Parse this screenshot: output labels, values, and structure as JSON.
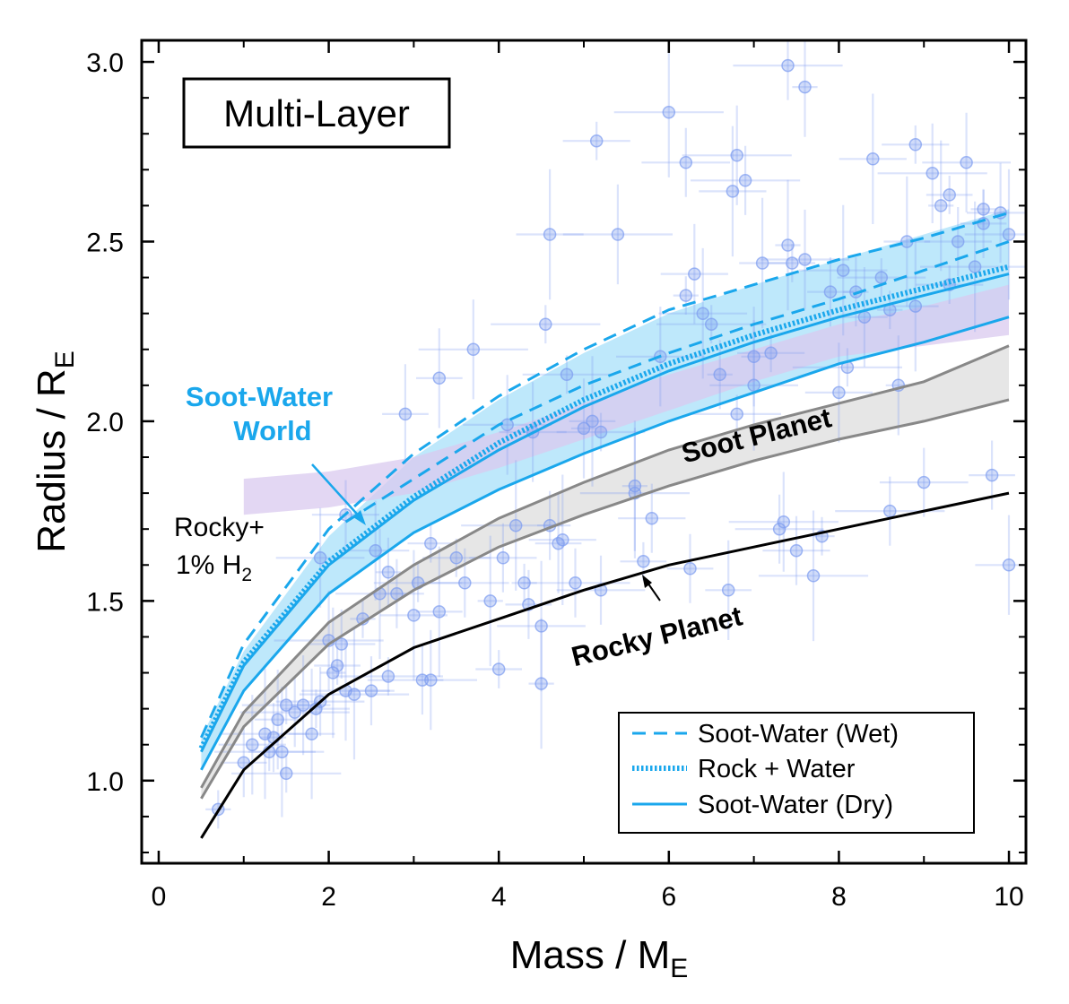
{
  "chart_data": {
    "type": "line",
    "title": "Multi-Layer",
    "xlabel": "Mass / M",
    "xlabel_sub": "E",
    "ylabel": "Radius / R",
    "ylabel_sub": "E",
    "xlim": [
      -0.2,
      10.2
    ],
    "ylim": [
      0.77,
      3.06
    ],
    "xticks": [
      0,
      2,
      4,
      6,
      8,
      10
    ],
    "xtick_labels": [
      "0",
      "2",
      "4",
      "6",
      "8",
      "10"
    ],
    "yticks": [
      1.0,
      1.5,
      2.0,
      2.5,
      3.0
    ],
    "ytick_labels": [
      "1.0",
      "1.5",
      "2.0",
      "2.5",
      "3.0"
    ],
    "colors": {
      "cyan": "#1aa7ec",
      "cyan_fill": "#b3e4fa",
      "gray_line": "#888888",
      "gray_fill": "#e2e2e2",
      "black": "#000000",
      "purple_fill": "#d9c9ef",
      "points": "#7c9bef"
    },
    "series": [
      {
        "name": "Soot-Water (Wet)",
        "style": "dashed",
        "color": "#1aa7ec",
        "x": [
          0.5,
          1,
          2,
          3,
          4,
          5,
          6,
          7,
          8,
          9,
          10
        ],
        "y": [
          1.12,
          1.38,
          1.7,
          1.91,
          2.07,
          2.2,
          2.31,
          2.38,
          2.45,
          2.51,
          2.58
        ]
      },
      {
        "name": "Soot-Water (Wet) lower",
        "style": "dashed",
        "color": "#1aa7ec",
        "x": [
          2.2,
          3,
          4,
          5,
          6,
          7,
          8,
          9,
          10
        ],
        "y": [
          1.72,
          1.84,
          1.99,
          2.1,
          2.19,
          2.27,
          2.34,
          2.42,
          2.5
        ]
      },
      {
        "name": "Rock + Water",
        "style": "dotted",
        "color": "#1aa7ec",
        "x": [
          0.5,
          1,
          2,
          3,
          4,
          5,
          6,
          7,
          8,
          9,
          10
        ],
        "y": [
          1.09,
          1.33,
          1.61,
          1.79,
          1.94,
          2.06,
          2.16,
          2.24,
          2.31,
          2.37,
          2.43
        ]
      },
      {
        "name": "Soot-Water (Dry)",
        "style": "solid",
        "color": "#1aa7ec",
        "x": [
          0.5,
          1,
          2,
          3,
          4,
          5,
          6,
          7,
          8,
          9,
          10
        ],
        "y": [
          1.08,
          1.32,
          1.6,
          1.78,
          1.92,
          2.04,
          2.14,
          2.22,
          2.29,
          2.35,
          2.41
        ]
      },
      {
        "name": "Soot-Water (Dry) lower",
        "style": "solid",
        "color": "#1aa7ec",
        "x": [
          0.5,
          1,
          2,
          3,
          4,
          5,
          6,
          7,
          8,
          9,
          10
        ],
        "y": [
          1.03,
          1.25,
          1.52,
          1.69,
          1.81,
          1.91,
          2.0,
          2.08,
          2.16,
          2.22,
          2.29
        ]
      },
      {
        "name": "Soot Planet upper",
        "style": "solid",
        "color": "#888888",
        "x": [
          0.5,
          1,
          2,
          3,
          4,
          5,
          6,
          7,
          8,
          9,
          10
        ],
        "y": [
          0.98,
          1.19,
          1.44,
          1.6,
          1.73,
          1.83,
          1.92,
          1.99,
          2.05,
          2.11,
          2.21
        ]
      },
      {
        "name": "Soot Planet lower",
        "style": "solid",
        "color": "#888888",
        "x": [
          0.5,
          1,
          2,
          3,
          4,
          5,
          6,
          7,
          8,
          9,
          10
        ],
        "y": [
          0.95,
          1.15,
          1.38,
          1.53,
          1.65,
          1.74,
          1.82,
          1.89,
          1.95,
          2.0,
          2.06
        ]
      },
      {
        "name": "Rocky Planet",
        "style": "solid",
        "color": "#000000",
        "x": [
          0.5,
          1,
          2,
          3,
          4,
          5,
          6,
          7,
          8,
          9,
          10
        ],
        "y": [
          0.84,
          1.03,
          1.24,
          1.37,
          1.45,
          1.53,
          1.6,
          1.65,
          1.7,
          1.75,
          1.8
        ]
      }
    ],
    "bands": [
      {
        "name": "Soot-Water band",
        "color": "#b3e4fa",
        "x": [
          0.5,
          1,
          2,
          3,
          4,
          5,
          6,
          7,
          8,
          9,
          10
        ],
        "upper": [
          1.12,
          1.36,
          1.68,
          1.9,
          2.06,
          2.19,
          2.3,
          2.38,
          2.45,
          2.52,
          2.59
        ],
        "lower": [
          1.03,
          1.25,
          1.52,
          1.69,
          1.81,
          1.91,
          2.0,
          2.08,
          2.16,
          2.22,
          2.29
        ]
      },
      {
        "name": "Soot Planet band",
        "color": "#e2e2e2",
        "x": [
          0.5,
          1,
          2,
          3,
          4,
          5,
          6,
          7,
          8,
          9,
          10
        ],
        "upper": [
          0.98,
          1.19,
          1.44,
          1.6,
          1.73,
          1.83,
          1.92,
          1.99,
          2.05,
          2.11,
          2.21
        ],
        "lower": [
          0.95,
          1.15,
          1.38,
          1.53,
          1.65,
          1.74,
          1.82,
          1.89,
          1.95,
          2.0,
          2.06
        ]
      },
      {
        "name": "Rocky+1% H2 band",
        "color": "#d9c9ef",
        "x": [
          1,
          2,
          3,
          4,
          5,
          6,
          7,
          8,
          9,
          10
        ],
        "upper": [
          1.84,
          1.86,
          1.9,
          1.97,
          2.05,
          2.13,
          2.2,
          2.27,
          2.32,
          2.38
        ],
        "lower": [
          1.74,
          1.76,
          1.8,
          1.87,
          1.95,
          2.03,
          2.11,
          2.18,
          2.21,
          2.24
        ]
      }
    ],
    "points": {
      "x": [
        0.7,
        1.0,
        1.1,
        1.25,
        1.3,
        1.35,
        1.4,
        1.45,
        1.5,
        1.6,
        1.7,
        1.8,
        1.85,
        1.9,
        2.0,
        2.05,
        2.1,
        2.15,
        2.2,
        2.3,
        2.4,
        2.5,
        2.55,
        2.6,
        2.7,
        2.8,
        2.9,
        3.0,
        3.05,
        3.1,
        3.2,
        3.3,
        3.5,
        3.6,
        3.7,
        3.9,
        4.0,
        4.05,
        4.1,
        4.2,
        4.3,
        4.35,
        4.4,
        4.5,
        4.55,
        4.6,
        4.7,
        4.75,
        4.8,
        4.9,
        5.0,
        5.1,
        5.15,
        5.2,
        5.4,
        5.6,
        5.7,
        5.8,
        5.9,
        6.0,
        6.2,
        6.25,
        6.3,
        6.4,
        6.5,
        6.6,
        6.7,
        6.75,
        6.8,
        6.9,
        7.0,
        7.1,
        7.2,
        7.3,
        7.35,
        7.4,
        7.45,
        7.5,
        7.6,
        7.7,
        7.8,
        7.9,
        8.0,
        8.05,
        8.1,
        8.2,
        8.3,
        8.4,
        8.5,
        8.6,
        8.7,
        8.8,
        8.9,
        9.0,
        9.1,
        9.2,
        9.3,
        9.4,
        9.5,
        9.6,
        9.7,
        9.8,
        9.9,
        10.0,
        1.5,
        2.7,
        3.3,
        4.6,
        5.2,
        7.4,
        7.6,
        8.9,
        9.3,
        6.2,
        6.8,
        4.5,
        3.2,
        2.2,
        1.9,
        5.6,
        8.6,
        9.7,
        10.0,
        7.0
      ],
      "y": [
        0.92,
        1.05,
        1.1,
        1.13,
        1.08,
        1.12,
        1.17,
        1.08,
        1.21,
        1.19,
        1.21,
        1.13,
        1.2,
        1.22,
        1.39,
        1.3,
        1.32,
        1.38,
        1.25,
        1.24,
        1.45,
        1.25,
        1.64,
        1.52,
        1.29,
        1.52,
        2.02,
        1.46,
        1.55,
        1.28,
        1.28,
        1.47,
        1.62,
        1.55,
        2.2,
        1.5,
        1.31,
        1.62,
        1.99,
        1.71,
        1.55,
        1.49,
        1.97,
        1.43,
        2.27,
        1.71,
        1.66,
        1.67,
        2.13,
        1.55,
        1.98,
        2.0,
        2.78,
        1.53,
        2.52,
        1.82,
        1.61,
        1.73,
        2.18,
        2.86,
        2.35,
        1.59,
        2.41,
        2.3,
        2.27,
        2.13,
        1.53,
        2.64,
        2.02,
        2.67,
        2.18,
        2.44,
        2.19,
        1.7,
        1.72,
        2.49,
        2.44,
        1.64,
        2.45,
        1.57,
        1.68,
        2.36,
        2.08,
        2.42,
        2.15,
        2.36,
        2.29,
        2.73,
        2.4,
        1.75,
        2.1,
        2.5,
        2.77,
        1.83,
        2.69,
        2.6,
        2.63,
        2.5,
        2.72,
        2.43,
        2.59,
        1.85,
        2.58,
        2.52,
        1.02,
        1.58,
        2.12,
        2.52,
        1.97,
        2.99,
        2.93,
        2.32,
        2.38,
        2.72,
        2.74,
        1.27,
        1.66,
        1.74,
        1.62,
        1.8,
        2.31,
        2.55,
        1.6,
        2.1
      ]
    },
    "annotations": {
      "soot_water_world_line1": "Soot-Water",
      "soot_water_world_line2": "World",
      "rocky_h2_line1": "Rocky+",
      "rocky_h2_line2_main": "1% H",
      "rocky_h2_line2_sub": "2",
      "soot_planet": "Soot Planet",
      "rocky_planet": "Rocky Planet"
    },
    "legend": {
      "position": "bottom-right",
      "entries": [
        {
          "label": "Soot-Water (Wet)",
          "style": "dashed"
        },
        {
          "label": "Rock + Water",
          "style": "dotted"
        },
        {
          "label": "Soot-Water (Dry)",
          "style": "solid"
        }
      ]
    }
  }
}
